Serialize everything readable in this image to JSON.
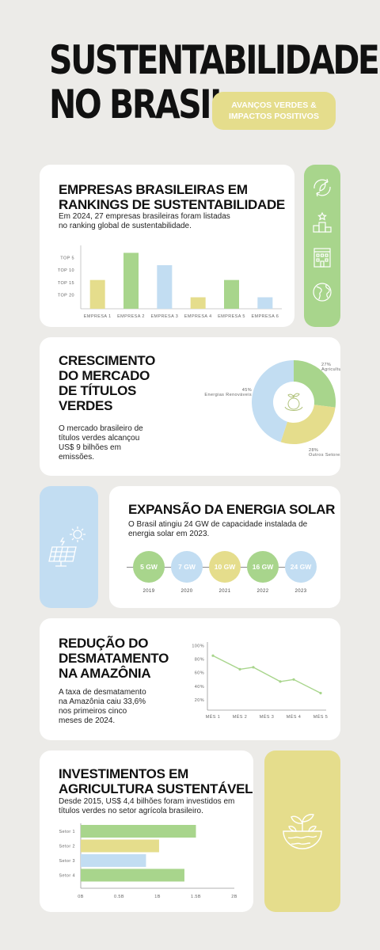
{
  "title": {
    "line1": "SUSTENTABILIDADE",
    "line2": "NO BRASIL"
  },
  "pill": {
    "line1": "AVANÇOS VERDES &",
    "line2": "IMPACTOS POSITIVOS"
  },
  "colors": {
    "green": "#a8d58c",
    "blue": "#c2ddf2",
    "yellow": "#e5dd8c",
    "background": "#ecebe8"
  },
  "icons": [
    "recycle-icon",
    "podium-icon",
    "building-icon",
    "globe-icon",
    "solar-panel-icon",
    "plant-bowl-icon",
    "seedling-globe-icon"
  ],
  "section1": {
    "title_line1": "EMPRESAS BRASILEIRAS EM",
    "title_line2": "RANKINGS DE SUSTENTABILIDADE",
    "desc_line1": "Em 2024, 27 empresas brasileiras foram listadas",
    "desc_line2": "no ranking global de sustentabilidade."
  },
  "section2": {
    "title_lines": [
      "CRESCIMENTO",
      "DO MERCADO",
      "DE TÍTULOS",
      "VERDES"
    ],
    "desc_lines": [
      "O mercado brasileiro de",
      "títulos verdes alcançou",
      "US$ 9 bilhões em",
      "emissões."
    ]
  },
  "section3": {
    "title": "EXPANSÃO DA ENERGIA SOLAR",
    "desc_line1": "O Brasil atingiu 24 GW de capacidade instalada de",
    "desc_line2": "energia solar em 2023.",
    "timeline": [
      {
        "value": "5 GW",
        "year": "2019",
        "color": "#a8d58c"
      },
      {
        "value": "7 GW",
        "year": "2020",
        "color": "#c2ddf2"
      },
      {
        "value": "10 GW",
        "year": "2021",
        "color": "#e5dd8c"
      },
      {
        "value": "16 GW",
        "year": "2022",
        "color": "#a8d58c"
      },
      {
        "value": "24 GW",
        "year": "2023",
        "color": "#c2ddf2"
      }
    ]
  },
  "section4": {
    "title_lines": [
      "REDUÇÃO DO",
      "DESMATAMENTO",
      "NA AMAZÔNIA"
    ],
    "desc_lines": [
      "A taxa de desmatamento",
      "na Amazônia caiu 33,6%",
      "nos primeiros cinco",
      "meses de 2024."
    ]
  },
  "section5": {
    "title_line1": "INVESTIMENTOS EM",
    "title_line2": "AGRICULTURA SUSTENTÁVEL",
    "desc_line1": "Desde 2015, US$ 4,4 bilhões foram investidos em",
    "desc_line2": "títulos verdes no setor agrícola brasileiro."
  },
  "chart_data": [
    {
      "type": "bar",
      "categories": [
        "EMPRESA 1",
        "EMPRESA 2",
        "EMPRESA 3",
        "EMPRESA 4",
        "EMPRESA 5",
        "EMPRESA 6"
      ],
      "y_tick_labels": [
        "TOP 5",
        "TOP 10",
        "TOP 15",
        "TOP 20"
      ],
      "y_tick_values": [
        5,
        10,
        15,
        20
      ],
      "values": [
        14,
        3,
        8,
        21,
        14,
        21
      ],
      "colors": [
        "#e5dd8c",
        "#a8d58c",
        "#c2ddf2",
        "#e5dd8c",
        "#a8d58c",
        "#c2ddf2"
      ],
      "ylim": [
        25,
        0
      ],
      "inverted": true
    },
    {
      "type": "pie",
      "donut": true,
      "slices": [
        {
          "label": "Agricultura",
          "value": 27,
          "value_label": "27%",
          "color": "#a8d58c"
        },
        {
          "label": "Outros Setores",
          "value": 28,
          "value_label": "28%",
          "color": "#e5dd8c"
        },
        {
          "label": "Energias Renováveis",
          "value": 45,
          "value_label": "45%",
          "color": "#c2ddf2"
        }
      ]
    },
    {
      "type": "line",
      "categories": [
        "MÊS 1",
        "MÊS 2",
        "MÊS 3",
        "MÊS 4",
        "MÊS 5"
      ],
      "x": [
        1,
        2,
        2.5,
        3.5,
        4,
        5
      ],
      "values": [
        85,
        65,
        68,
        47,
        50,
        30
      ],
      "y_tick_labels": [
        "100%",
        "80%",
        "60%",
        "40%",
        "20%"
      ],
      "y_tick_values": [
        100,
        80,
        60,
        40,
        20
      ],
      "ylim": [
        0,
        100
      ],
      "color": "#a8d58c"
    },
    {
      "type": "bar",
      "orientation": "horizontal",
      "categories": [
        "Setor 1",
        "Setor 2",
        "Setor 3",
        "Setor 4"
      ],
      "values": [
        1.5,
        1.02,
        0.85,
        1.35
      ],
      "colors": [
        "#a8d58c",
        "#e5dd8c",
        "#c2ddf2",
        "#a8d58c"
      ],
      "x_tick_labels": [
        "0B",
        "0.5B",
        "1B",
        "1.5B",
        "2B"
      ],
      "x_tick_values": [
        0,
        0.5,
        1,
        1.5,
        2
      ],
      "xlim": [
        0,
        2
      ]
    }
  ]
}
